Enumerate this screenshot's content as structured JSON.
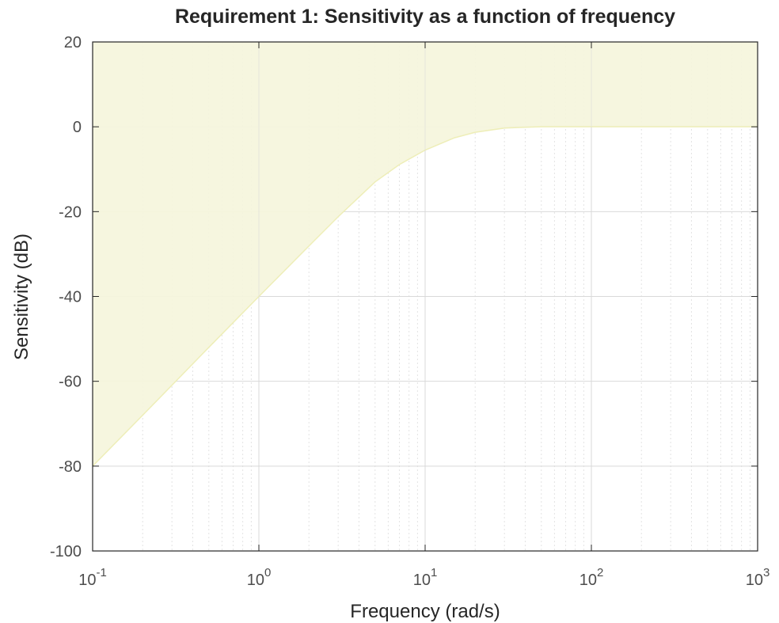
{
  "chart_data": {
    "type": "area",
    "title": "Requirement 1: Sensitivity as a function of frequency",
    "xlabel": "Frequency (rad/s)",
    "ylabel": "Sensitivity (dB)",
    "xscale": "log",
    "xlim": [
      0.1,
      1000
    ],
    "ylim": [
      -100,
      20
    ],
    "grid": true,
    "x_ticks": [
      {
        "base": "10",
        "exponent": "-1",
        "value": 0.1
      },
      {
        "base": "10",
        "exponent": "0",
        "value": 1
      },
      {
        "base": "10",
        "exponent": "1",
        "value": 10
      },
      {
        "base": "10",
        "exponent": "2",
        "value": 100
      },
      {
        "base": "10",
        "exponent": "3",
        "value": 1000
      }
    ],
    "y_ticks": [
      {
        "label": "20",
        "value": 20
      },
      {
        "label": "0",
        "value": 0
      },
      {
        "label": "-20",
        "value": -20
      },
      {
        "label": "-40",
        "value": -40
      },
      {
        "label": "-60",
        "value": -60
      },
      {
        "label": "-80",
        "value": -80
      },
      {
        "label": "-100",
        "value": -100
      }
    ],
    "boundary": {
      "x": [
        0.1,
        0.2,
        0.5,
        1,
        2,
        3,
        5,
        7,
        10,
        15,
        20,
        30,
        40,
        50,
        70,
        100,
        200,
        500,
        1000
      ],
      "y": [
        -80,
        -68,
        -52,
        -40,
        -28.1,
        -21.2,
        -13.0,
        -8.9,
        -5.5,
        -2.6,
        -1.3,
        -0.3,
        -0.1,
        0,
        0,
        0,
        0,
        0,
        0
      ]
    },
    "shaded_region": "above-boundary-to-ymax",
    "colors": {
      "fill": "#f5f5dc",
      "fill_edge": "#eeeeb8",
      "axes": "#262626",
      "grid": "#d9d9d9",
      "minor_grid": "#e3e3e3"
    }
  }
}
